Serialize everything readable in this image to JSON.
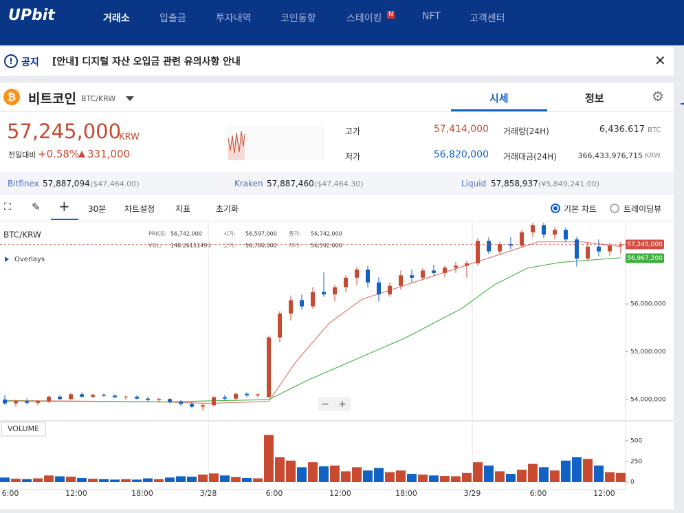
{
  "nav": {
    "logo": "UPbit",
    "items": [
      "거래소",
      "입출금",
      "투자내역",
      "코인동향",
      "스테이킹",
      "NFT",
      "고객센터"
    ],
    "badge": "N"
  },
  "notice": {
    "label": "공지",
    "text": "[안내] 디지털 자산 오입금 관련 유의사항 안내"
  },
  "coin": {
    "name": "비트코인",
    "pair": "BTC/KRW",
    "tabs": [
      "시세",
      "정보"
    ]
  },
  "price": {
    "value": "57,245,000",
    "unit": "KRW",
    "change_label": "전일대비",
    "change_pct": "+0.58%",
    "change_amt": "331,000"
  },
  "stats": {
    "high_label": "고가",
    "high": "57,414,000",
    "low_label": "저가",
    "low": "56,820,000",
    "volume_label": "거래량(24H)",
    "volume": "6,436.617",
    "volume_unit": "BTC",
    "amount_label": "거래대금(24H)",
    "amount": "366,433,976,715",
    "amount_unit": "KRW"
  },
  "exchanges": [
    {
      "name": "Bitfinex",
      "price": "57,887,094",
      "usd": "($47,464.00)"
    },
    {
      "name": "Kraken",
      "price": "57,887,460",
      "usd": "($47,464.30)"
    },
    {
      "name": "Liquid",
      "price": "57,858,937",
      "usd": "(¥5,849,241.00)"
    }
  ],
  "toolbar": {
    "interval": "30분",
    "settings": "차트설정",
    "indicators": "지표",
    "reset": "초기화",
    "basic": "기본 차트",
    "tradingview": "트레이딩뷰"
  },
  "chart_data": {
    "type": "candlestick",
    "pair": "BTC/KRW",
    "overlays": "Overlays",
    "volume_title": "VOLUME",
    "info": [
      [
        "PRICE:",
        "56,742,000"
      ],
      [
        "시가:",
        "56,597,000"
      ],
      [
        "종가:",
        "56,742,000"
      ],
      [
        "VOL:",
        "148.26151495"
      ],
      [
        "고가:",
        "56,780,000"
      ],
      [
        "저가:",
        "56,592,000"
      ]
    ],
    "x": [
      5.5,
      6.5,
      7.5,
      8.5,
      9.5,
      10.5,
      11.5,
      12.5,
      13.5,
      14.5,
      15.5,
      16.5,
      17.5,
      18.5,
      19.5,
      20.5,
      21.5,
      22.5,
      23.5,
      24.5,
      25.5,
      26.5,
      27.5,
      28.5,
      29.5,
      30.5,
      31.5,
      32.5,
      33.5,
      34.5,
      35.5,
      36.5,
      37.5,
      38.5,
      39.5,
      40.5,
      41.5,
      42.5,
      43.5,
      44.5,
      45.5,
      46.5,
      47.5,
      48.5,
      49.5,
      50.5,
      51.5,
      52.5,
      53.5,
      54.5,
      55.5,
      56.5,
      57.5,
      58.5,
      59.5,
      60.5,
      61.5
    ],
    "open": [
      54000000,
      53920000,
      53960000,
      53930000,
      53960000,
      54060000,
      54010000,
      54110000,
      54060000,
      54100000,
      54080000,
      54050000,
      54060000,
      54020000,
      53990000,
      54010000,
      53950000,
      53910000,
      53850000,
      53880000,
      54050000,
      54020000,
      54120000,
      54090000,
      54050000,
      55300000,
      55800000,
      56080000,
      55950000,
      56250000,
      56200000,
      56350000,
      56550000,
      56720000,
      56450000,
      56200000,
      56380000,
      56600000,
      56550000,
      56700000,
      56650000,
      56760000,
      56800000,
      56850000,
      57320000,
      57100000,
      57250000,
      57220000,
      57500000,
      57650000,
      57450000,
      57550000,
      57350000,
      56950000,
      57200000,
      57100000,
      57220000
    ],
    "high": [
      54100000,
      54000000,
      54020000,
      53990000,
      54080000,
      54100000,
      54140000,
      54150000,
      54120000,
      54130000,
      54110000,
      54090000,
      54090000,
      54060000,
      54040000,
      54030000,
      53990000,
      53960000,
      53930000,
      54070000,
      54100000,
      54140000,
      54150000,
      54130000,
      55340000,
      55850000,
      56180000,
      56200000,
      56350000,
      56660000,
      56400000,
      56600000,
      56780000,
      56800000,
      56560000,
      56450000,
      56700000,
      56720000,
      56750000,
      56820000,
      56800000,
      56880000,
      56900000,
      57380000,
      57400000,
      57300000,
      57400000,
      57550000,
      57700000,
      57700000,
      57600000,
      57600000,
      57400000,
      57300000,
      57350000,
      57280000,
      57300000
    ],
    "low": [
      53880000,
      53850000,
      53900000,
      53880000,
      53930000,
      53990000,
      53990000,
      54040000,
      54030000,
      54060000,
      54030000,
      53990000,
      54000000,
      53960000,
      53940000,
      53920000,
      53870000,
      53820000,
      53760000,
      53860000,
      53980000,
      54000000,
      54060000,
      54040000,
      54030000,
      55200000,
      55650000,
      55880000,
      55900000,
      56150000,
      56050000,
      56250000,
      56400000,
      56350000,
      56050000,
      56150000,
      56300000,
      56450000,
      56500000,
      56580000,
      56560000,
      56650000,
      56550000,
      56800000,
      57050000,
      57050000,
      57150000,
      57180000,
      57400000,
      57380000,
      57350000,
      57300000,
      56780000,
      56900000,
      57000000,
      57000000,
      57050000
    ],
    "close": [
      53920000,
      53960000,
      53930000,
      53960000,
      54060000,
      54010000,
      54110000,
      54060000,
      54100000,
      54080000,
      54050000,
      54060000,
      54020000,
      53990000,
      54010000,
      53950000,
      53910000,
      53850000,
      53880000,
      54050000,
      54020000,
      54120000,
      54090000,
      54110000,
      55300000,
      55800000,
      56080000,
      55950000,
      56250000,
      56200000,
      56350000,
      56550000,
      56720000,
      56450000,
      56200000,
      56380000,
      56600000,
      56550000,
      56700000,
      56650000,
      56760000,
      56800000,
      56850000,
      57320000,
      57100000,
      57250000,
      57220000,
      57500000,
      57650000,
      57450000,
      57550000,
      57350000,
      56950000,
      57200000,
      57100000,
      57220000,
      57245000
    ],
    "volume": [
      55,
      40,
      35,
      45,
      80,
      70,
      65,
      50,
      40,
      35,
      30,
      35,
      30,
      45,
      35,
      55,
      70,
      65,
      90,
      105,
      80,
      60,
      50,
      45,
      570,
      300,
      260,
      180,
      240,
      190,
      200,
      130,
      180,
      140,
      170,
      120,
      140,
      100,
      90,
      80,
      75,
      70,
      110,
      240,
      200,
      130,
      100,
      150,
      220,
      180,
      140,
      260,
      300,
      280,
      200,
      120,
      110
    ],
    "up_color": "#c84a31",
    "down_color": "#1261c4",
    "lines": [
      {
        "color": "#e07a6c",
        "x": [
          5.5,
          20,
          24,
          29.5,
          32,
          35,
          38,
          42,
          46,
          50,
          54,
          58,
          61.5
        ],
        "values": [
          53980000,
          53950000,
          53920000,
          53960000,
          54800000,
          55600000,
          56100000,
          56400000,
          56700000,
          57000000,
          57300000,
          57300000,
          57200000
        ]
      },
      {
        "color": "#4cb84c",
        "x": [
          5.5,
          20,
          29.5,
          33,
          38,
          42,
          47,
          50,
          53,
          56,
          61.5
        ],
        "values": [
          53970000,
          53950000,
          54000000,
          54400000,
          54900000,
          55300000,
          55900000,
          56400000,
          56750000,
          56870000,
          56967200
        ]
      }
    ],
    "price_markers": [
      {
        "value": 57245000,
        "label": "57,245,000",
        "color": "#d24f45"
      },
      {
        "value": 56967200,
        "label": "56,967,200",
        "color": "#3fae3f"
      }
    ],
    "xlim": [
      5.06,
      61.94
    ],
    "xticks": [
      {
        "value": 6,
        "label": "6:00"
      },
      {
        "value": 12,
        "label": "12:00"
      },
      {
        "value": 18,
        "label": "18:00"
      },
      {
        "value": 24,
        "label": "3/28"
      },
      {
        "value": 30,
        "label": "6:00"
      },
      {
        "value": 36,
        "label": "12:00"
      },
      {
        "value": 42,
        "label": "18:00"
      },
      {
        "value": 48,
        "label": "3/29"
      },
      {
        "value": 54,
        "label": "6:00"
      },
      {
        "value": 60,
        "label": "12:00"
      }
    ],
    "ylim": [
      53583000,
      57727000
    ],
    "yticks": [
      {
        "value": 54000000,
        "label": "54,000,000"
      },
      {
        "value": 55000000,
        "label": "55,000,000"
      },
      {
        "value": 56000000,
        "label": "56,000,000"
      }
    ],
    "volume_ylim": [
      0,
      741
    ],
    "volume_ticks": [
      0,
      250,
      500
    ]
  }
}
